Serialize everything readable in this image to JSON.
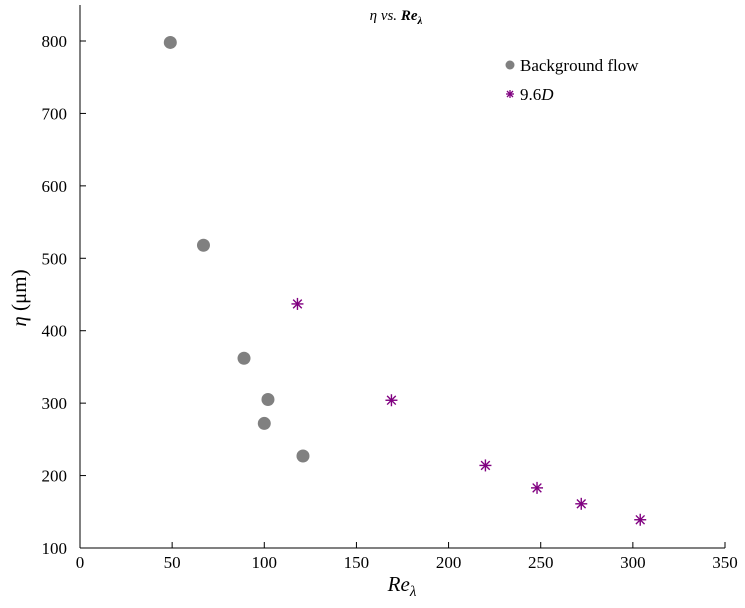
{
  "chart_data": {
    "type": "scatter",
    "title": {
      "main": "η vs. ",
      "var": "Re",
      "sub": "λ"
    },
    "xlabel": {
      "var": "Re",
      "sub": "λ"
    },
    "ylabel": {
      "symbol": "η",
      "unit": " (μm)"
    },
    "xlim": [
      0,
      350
    ],
    "ylim": [
      100,
      800
    ],
    "xticks": [
      "0",
      "50",
      "100",
      "150",
      "200",
      "250",
      "300",
      "350"
    ],
    "yticks": [
      "100",
      "200",
      "300",
      "400",
      "500",
      "600",
      "700",
      "800"
    ],
    "grid": false,
    "legend_position": "top-right",
    "series": [
      {
        "name": "Background flow",
        "legend": {
          "text": "Background flow"
        },
        "marker": "circle",
        "color": "#808080",
        "x": [
          49,
          67,
          89,
          100,
          102,
          121
        ],
        "y": [
          798,
          518,
          362,
          272,
          305,
          227
        ]
      },
      {
        "name": "9.6D",
        "legend": {
          "text": "9.6",
          "italic": "D"
        },
        "marker": "asterisk",
        "color": "#800080",
        "x": [
          118,
          169,
          220,
          248,
          272,
          304
        ],
        "y": [
          437,
          304,
          214,
          183,
          161,
          139
        ]
      }
    ]
  }
}
